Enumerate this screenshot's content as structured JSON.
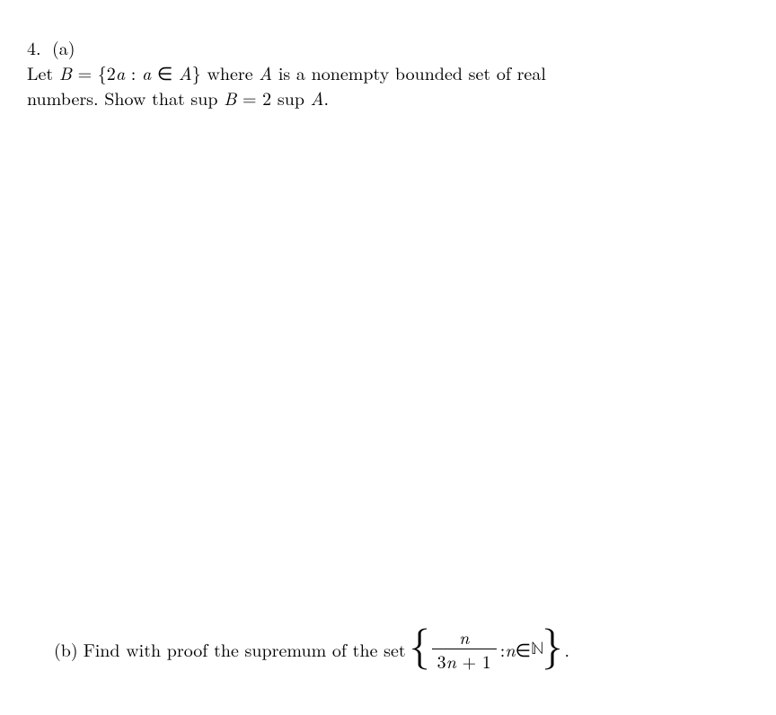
{
  "problem": {
    "number": "4.",
    "part_a": {
      "label": "(a)",
      "line1_pre": "Let ",
      "B": "B",
      "eq": " = {2",
      "a1": "a",
      "colon": " : ",
      "a2": "a",
      "in": " ∈ ",
      "A1": "A",
      "close": "} where ",
      "A2": "A",
      "rest1": " is a nonempty bounded set of real",
      "line2_pre": "numbers. Show that sup ",
      "B2": "B",
      "eq2": " = 2 sup ",
      "A3": "A",
      "period": "."
    },
    "part_b": {
      "label": "(b)",
      "text_pre": "Find with proof the supremum of the set ",
      "frac_num": "n",
      "frac_den_a": "3",
      "frac_den_b": "n",
      "frac_den_c": " + 1",
      "colon": " : ",
      "n": "n",
      "in": " ∈ ",
      "N": "ℕ",
      "period": "."
    }
  },
  "style": {
    "font_size_body": 20,
    "font_size_brace": 46,
    "text_color": "#000000",
    "background_color": "#ffffff"
  }
}
